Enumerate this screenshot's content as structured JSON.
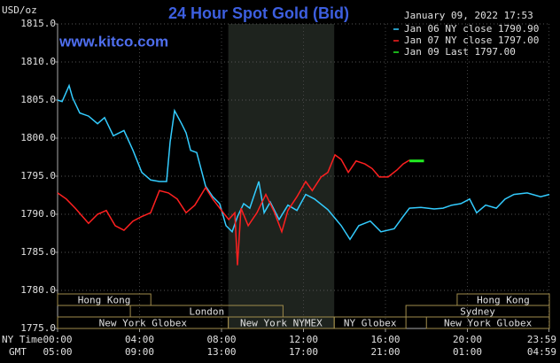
{
  "chart_data": {
    "type": "line",
    "title": "24 Hour Spot Gold (Bid)",
    "website": "www.kitco.com",
    "timestamp": "January 09, 2022 17:53",
    "y_unit": "USD/oz",
    "x_label": "NY Time",
    "x2_label": "GMT",
    "background": "#000000",
    "grid": true,
    "shaded_x": [
      8.33,
      13.5
    ],
    "shade_color": "#1e231e",
    "xlim": [
      0,
      24
    ],
    "ylim": [
      1775,
      1815
    ],
    "yticks": [
      {
        "value": 1775,
        "label": "1775.0"
      },
      {
        "value": 1780,
        "label": "1780.0"
      },
      {
        "value": 1785,
        "label": "1785.0"
      },
      {
        "value": 1790,
        "label": "1790.0"
      },
      {
        "value": 1795,
        "label": "1795.0"
      },
      {
        "value": 1800,
        "label": "1800.0"
      },
      {
        "value": 1805,
        "label": "1805.0"
      },
      {
        "value": 1810,
        "label": "1810.0"
      },
      {
        "value": 1815,
        "label": "1815.0"
      }
    ],
    "xticks": [
      {
        "value": 0,
        "label": "00:00"
      },
      {
        "value": 4,
        "label": "04:00"
      },
      {
        "value": 8,
        "label": "08:00"
      },
      {
        "value": 12,
        "label": "12:00"
      },
      {
        "value": 16,
        "label": "16:00"
      },
      {
        "value": 20,
        "label": "20:00"
      },
      {
        "value": 23.98,
        "label": "23:59"
      }
    ],
    "x2ticks": [
      {
        "value": 0,
        "label": "05:00"
      },
      {
        "value": 4,
        "label": "09:00"
      },
      {
        "value": 8,
        "label": "13:00"
      },
      {
        "value": 12,
        "label": "17:00"
      },
      {
        "value": 16,
        "label": "21:00"
      },
      {
        "value": 20,
        "label": "01:00"
      },
      {
        "value": 23.98,
        "label": "04:59"
      }
    ],
    "sessions": [
      [
        {
          "name": "Hong Kong",
          "start": 0,
          "end": 4.55
        },
        {
          "name": "Hong Kong",
          "start": 19.5,
          "end": 24
        }
      ],
      [
        {
          "name": "London",
          "start": 3.55,
          "end": 11
        },
        {
          "name": "Sydney",
          "start": 17,
          "end": 24
        }
      ],
      [
        {
          "name": "New York Globex",
          "start": 0,
          "end": 8.33
        },
        {
          "name": "New York NYMEX",
          "start": 8.33,
          "end": 13.5
        },
        {
          "name": "NY Globex",
          "start": 13.5,
          "end": 17
        },
        {
          "name": "New York Globex",
          "start": 18,
          "end": 24
        }
      ]
    ],
    "series": [
      {
        "name": "Jan 06 NY close 1790.90",
        "color": "#33ccff",
        "x": [
          0,
          0.22,
          0.56,
          0.73,
          1.08,
          1.51,
          1.95,
          2.29,
          2.72,
          3.24,
          3.68,
          4.11,
          4.54,
          4.97,
          5.32,
          5.49,
          5.71,
          6.05,
          6.27,
          6.49,
          6.79,
          7.22,
          7.57,
          7.91,
          8.22,
          8.52,
          8.78,
          9.08,
          9.38,
          9.82,
          10.08,
          10.38,
          10.81,
          11.24,
          11.68,
          12.11,
          12.54,
          13.19,
          13.84,
          14.27,
          14.7,
          15.26,
          15.78,
          16.43,
          16.86,
          17.17,
          17.73,
          18.38,
          18.81,
          19.24,
          19.68,
          20.11,
          20.45,
          20.89,
          21.41,
          21.84,
          22.27,
          22.92,
          23.57,
          24
        ],
        "values": [
          1805.0,
          1804.8,
          1806.9,
          1805.3,
          1803.3,
          1802.9,
          1801.9,
          1802.7,
          1800.3,
          1801.0,
          1798.4,
          1795.5,
          1794.5,
          1794.3,
          1794.3,
          1799.5,
          1803.6,
          1801.9,
          1800.7,
          1798.4,
          1798.1,
          1793.7,
          1792.3,
          1791.4,
          1788.5,
          1787.7,
          1789.7,
          1791.4,
          1790.8,
          1794.3,
          1790.2,
          1791.6,
          1789.3,
          1791.2,
          1790.5,
          1792.6,
          1792.0,
          1790.6,
          1788.5,
          1786.7,
          1788.5,
          1789.1,
          1787.7,
          1788.1,
          1789.7,
          1790.8,
          1790.9,
          1790.7,
          1790.8,
          1791.2,
          1791.4,
          1792.0,
          1790.2,
          1791.2,
          1790.8,
          1792.0,
          1792.6,
          1792.8,
          1792.3,
          1792.6
        ]
      },
      {
        "name": "Jan 07 NY close 1797.00",
        "color": "#ff2020",
        "x": [
          0,
          0.43,
          0.86,
          1.51,
          1.95,
          2.38,
          2.81,
          3.24,
          3.68,
          4.11,
          4.54,
          4.97,
          5.41,
          5.84,
          6.27,
          6.7,
          7.22,
          7.57,
          8.0,
          8.35,
          8.65,
          8.78,
          8.95,
          9.3,
          9.73,
          10.16,
          10.59,
          10.94,
          11.24,
          11.68,
          12.11,
          12.43,
          12.86,
          13.19,
          13.54,
          13.84,
          14.19,
          14.57,
          15.0,
          15.35,
          15.7,
          16.13,
          16.56,
          16.86,
          17.17
        ],
        "values": [
          1792.8,
          1792.0,
          1790.8,
          1788.8,
          1790.0,
          1790.5,
          1788.5,
          1787.9,
          1789.1,
          1789.7,
          1790.2,
          1793.1,
          1792.8,
          1792.0,
          1790.2,
          1791.2,
          1793.5,
          1792.0,
          1790.5,
          1789.3,
          1790.2,
          1783.3,
          1790.8,
          1788.5,
          1790.2,
          1792.6,
          1790.2,
          1787.7,
          1790.5,
          1792.3,
          1794.3,
          1793.1,
          1794.9,
          1795.5,
          1797.8,
          1797.2,
          1795.5,
          1797.0,
          1796.6,
          1796.0,
          1794.9,
          1794.9,
          1795.8,
          1796.6,
          1797.1
        ]
      },
      {
        "name": "Jan 09 Last 1797.00",
        "color": "#22ee22",
        "x": [
          17.17,
          17.88
        ],
        "values": [
          1797.0,
          1797.0
        ]
      }
    ]
  }
}
